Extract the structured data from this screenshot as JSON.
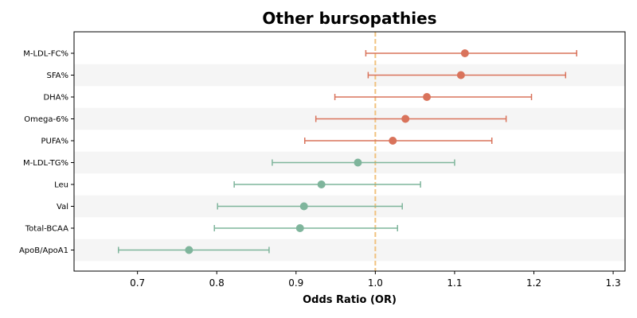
{
  "chart_data": {
    "type": "forest",
    "title": "Other bursopathies",
    "xlabel": "Odds Ratio (OR)",
    "ylabel": "",
    "xlim": [
      0.62,
      1.315
    ],
    "xticks": [
      "0.7",
      "0.8",
      "0.9",
      "1.0",
      "1.1",
      "1.2",
      "1.3"
    ],
    "reference_line": 1.0,
    "reference_color": "#f0c27f",
    "grid": false,
    "alternating_row_shading": true,
    "colors": {
      "increase": "#d9735b",
      "decrease": "#7fb59c"
    },
    "rows": [
      {
        "label": "M-LDL-FC%",
        "or": 1.113,
        "lower": 0.988,
        "upper": 1.254,
        "direction": "increase"
      },
      {
        "label": "SFA%",
        "or": 1.108,
        "lower": 0.991,
        "upper": 1.24,
        "direction": "increase"
      },
      {
        "label": "DHA%",
        "or": 1.065,
        "lower": 0.949,
        "upper": 1.197,
        "direction": "increase"
      },
      {
        "label": "Omega-6%",
        "or": 1.038,
        "lower": 0.925,
        "upper": 1.165,
        "direction": "increase"
      },
      {
        "label": "PUFA%",
        "or": 1.022,
        "lower": 0.911,
        "upper": 1.147,
        "direction": "increase"
      },
      {
        "label": "M-LDL-TG%",
        "or": 0.978,
        "lower": 0.87,
        "upper": 1.1,
        "direction": "decrease"
      },
      {
        "label": "Leu",
        "or": 0.932,
        "lower": 0.822,
        "upper": 1.057,
        "direction": "decrease"
      },
      {
        "label": "Val",
        "or": 0.91,
        "lower": 0.801,
        "upper": 1.034,
        "direction": "decrease"
      },
      {
        "label": "Total-BCAA",
        "or": 0.905,
        "lower": 0.797,
        "upper": 1.028,
        "direction": "decrease"
      },
      {
        "label": "ApoB/ApoA1",
        "or": 0.765,
        "lower": 0.676,
        "upper": 0.866,
        "direction": "decrease"
      }
    ]
  }
}
